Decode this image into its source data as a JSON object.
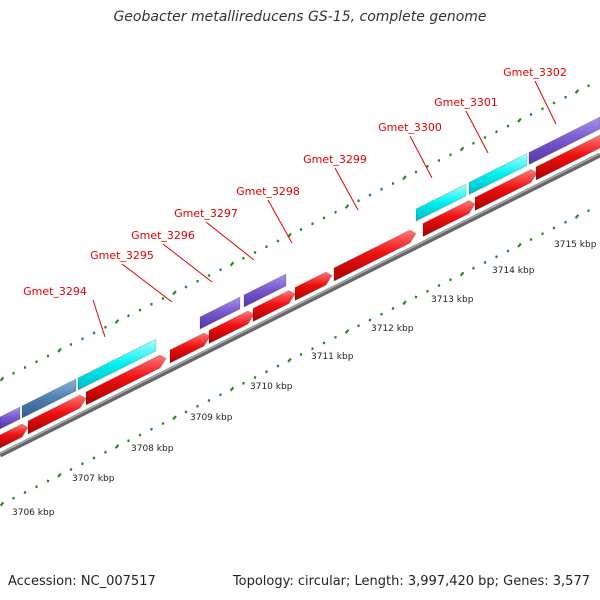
{
  "title": "Geobacter metallireducens GS-15, complete genome",
  "accession": "Accession: NC_007517",
  "stats": "Topology: circular; Length: 3,997,420 bp; Genes: 3,577",
  "colors": {
    "backbone": "#888888",
    "cds": "#ee1111",
    "feature_cyan": "#00f0f0",
    "feature_purple": "#7755cc",
    "feature_slate": "#4e7fae",
    "tick": "#228822",
    "gene_label": "#e00000"
  },
  "ticks": [
    "3706 kbp",
    "3707 kbp",
    "3708 kbp",
    "3709 kbp",
    "3710 kbp",
    "3711 kbp",
    "3712 kbp",
    "3713 kbp",
    "3714 kbp",
    "3715 kbp"
  ],
  "genes": [
    "Gmet_3294",
    "Gmet_3295",
    "Gmet_3296",
    "Gmet_3297",
    "Gmet_3298",
    "Gmet_3299",
    "Gmet_3300",
    "Gmet_3301",
    "Gmet_3302"
  ]
}
